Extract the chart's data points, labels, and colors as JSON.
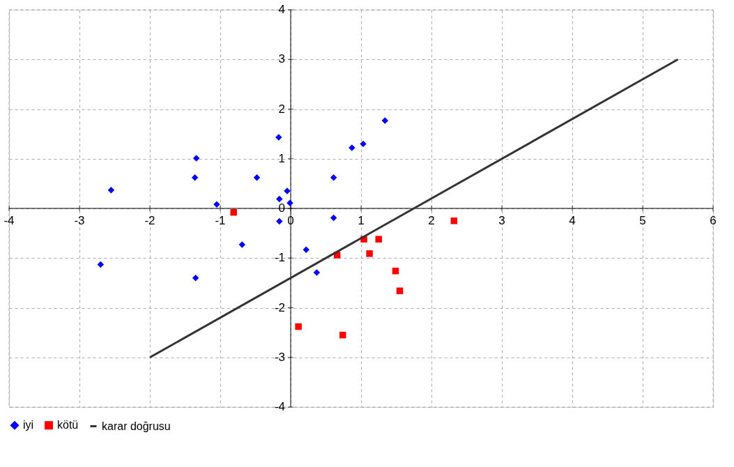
{
  "chart_data": {
    "type": "scatter",
    "xlim": [
      -4,
      6
    ],
    "ylim": [
      -4,
      4
    ],
    "xticks": [
      -4,
      -3,
      -2,
      -1,
      0,
      1,
      2,
      3,
      4,
      5,
      6
    ],
    "yticks": [
      -4,
      -3,
      -2,
      -1,
      0,
      1,
      2,
      3,
      4
    ],
    "grid": true,
    "legend": "bottom",
    "series": [
      {
        "name": "iyi",
        "color": "#0000ff",
        "marker": "diamond",
        "x": [
          -2.55,
          -2.7,
          -1.34,
          -1.36,
          -1.35,
          -1.05,
          -0.69,
          -0.48,
          -0.17,
          -0.16,
          -0.16,
          -0.05,
          -0.01,
          0.22,
          0.37,
          0.61,
          0.61,
          0.87,
          1.03,
          1.34
        ],
        "values": [
          0.37,
          -1.13,
          1.01,
          0.62,
          -1.4,
          0.08,
          -0.73,
          0.62,
          1.43,
          0.19,
          -0.26,
          0.35,
          0.11,
          -0.83,
          -1.29,
          0.62,
          -0.19,
          1.22,
          1.3,
          1.77
        ]
      },
      {
        "name": "kötü",
        "color": "#ff0000",
        "marker": "square",
        "x": [
          -0.81,
          0.11,
          0.66,
          0.74,
          1.04,
          1.12,
          1.25,
          1.49,
          1.55,
          2.32
        ],
        "values": [
          -0.08,
          -2.38,
          -0.94,
          -2.55,
          -0.62,
          -0.91,
          -0.62,
          -1.26,
          -1.66,
          -0.25
        ]
      },
      {
        "name": "karar doğrusu",
        "type": "line",
        "color": "#333333",
        "marker": "none",
        "line_style": "solid",
        "x": [
          -2,
          5.5
        ],
        "values": [
          -3,
          3
        ]
      }
    ]
  }
}
